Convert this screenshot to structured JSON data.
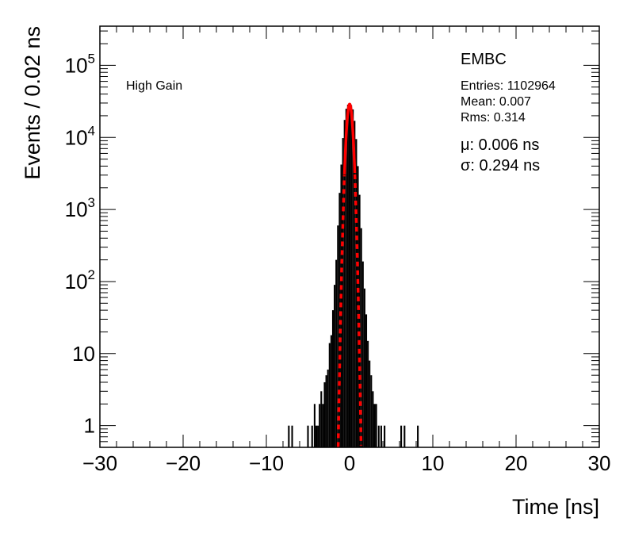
{
  "chart_data": {
    "type": "histogram",
    "title": "",
    "xlabel": "Time [ns]",
    "ylabel": "Events / 0.02 ns",
    "xlim": [
      -30,
      30
    ],
    "ylim": [
      0.5,
      350000
    ],
    "ylog": true,
    "grid": false,
    "x_ticks": [
      -30,
      -20,
      -10,
      0,
      10,
      20,
      30
    ],
    "x_tick_labels": [
      "−30",
      "−20",
      "−10",
      "0",
      "10",
      "20",
      "30"
    ],
    "y_ticks": [
      {
        "value": 1,
        "base": "1",
        "exp": ""
      },
      {
        "value": 10,
        "base": "10",
        "exp": ""
      },
      {
        "value": 100,
        "base": "10",
        "exp": "2"
      },
      {
        "value": 1000,
        "base": "10",
        "exp": "3"
      },
      {
        "value": 10000,
        "base": "10",
        "exp": "4"
      },
      {
        "value": 100000,
        "base": "10",
        "exp": "5"
      }
    ],
    "labels": {
      "gain": "High Gain",
      "detector": "EMBC",
      "entries": "Entries: 1102964",
      "mean": "Mean: 0.007",
      "rms": "Rms: 0.314",
      "mu": "μ: 0.006 ns",
      "sigma": "σ: 0.294 ns"
    },
    "series": [
      {
        "kind": "histogram",
        "color": "#000000",
        "peak": 29000,
        "x": [
          -7.3,
          -6.9,
          -5.0,
          -4.5,
          -4.2,
          -4.0,
          -3.8,
          -3.6,
          -3.4,
          -3.2,
          -3.0,
          -2.8,
          -2.6,
          -2.4,
          -2.2,
          -2.0,
          -1.8,
          -1.6,
          -1.4,
          -1.2,
          -1.0,
          -0.8,
          -0.6,
          -0.4,
          -0.2,
          0.0,
          0.2,
          0.4,
          0.6,
          0.8,
          1.0,
          1.2,
          1.4,
          1.6,
          1.8,
          2.0,
          2.2,
          2.4,
          2.6,
          2.8,
          3.0,
          3.2,
          3.5,
          3.8,
          4.2,
          6.2,
          6.6,
          8.2
        ],
        "values": [
          1,
          1,
          1,
          1,
          2,
          1,
          1,
          2,
          3,
          2,
          4,
          5,
          6,
          14,
          18,
          40,
          90,
          200,
          600,
          1700,
          4200,
          9800,
          17500,
          25000,
          28500,
          29000,
          28000,
          24500,
          17000,
          9500,
          4000,
          1600,
          550,
          190,
          80,
          35,
          15,
          8,
          5,
          3,
          2,
          2,
          1,
          1,
          1,
          1,
          1,
          1
        ]
      },
      {
        "kind": "gaussian_fit",
        "color": "#ff0000",
        "amplitude": 29000,
        "mu": 0.006,
        "sigma": 0.294
      }
    ]
  }
}
